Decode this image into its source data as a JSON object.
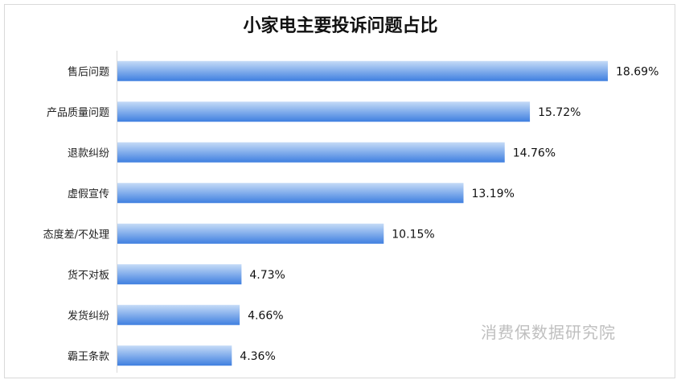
{
  "chart_data": {
    "type": "bar",
    "orientation": "horizontal",
    "title": "小家电主要投诉问题占比",
    "categories": [
      "售后问题",
      "产品质量问题",
      "退款纠纷",
      "虚假宣传",
      "态度差/不处理",
      "货不对板",
      "发货纠纷",
      "霸王条款"
    ],
    "values": [
      18.69,
      15.72,
      14.76,
      13.19,
      10.15,
      4.73,
      4.66,
      4.36
    ],
    "value_labels": [
      "18.69%",
      "15.72%",
      "14.76%",
      "13.19%",
      "10.15%",
      "4.73%",
      "4.66%",
      "4.36%"
    ],
    "xlabel": "",
    "ylabel": "",
    "xlim": [
      0,
      19.5
    ],
    "grid": false,
    "legend": "none",
    "colors": {
      "bar_top": "#c5dbf7",
      "bar_bottom": "#3f7fe0"
    }
  },
  "watermark": "消费保数据研究院"
}
